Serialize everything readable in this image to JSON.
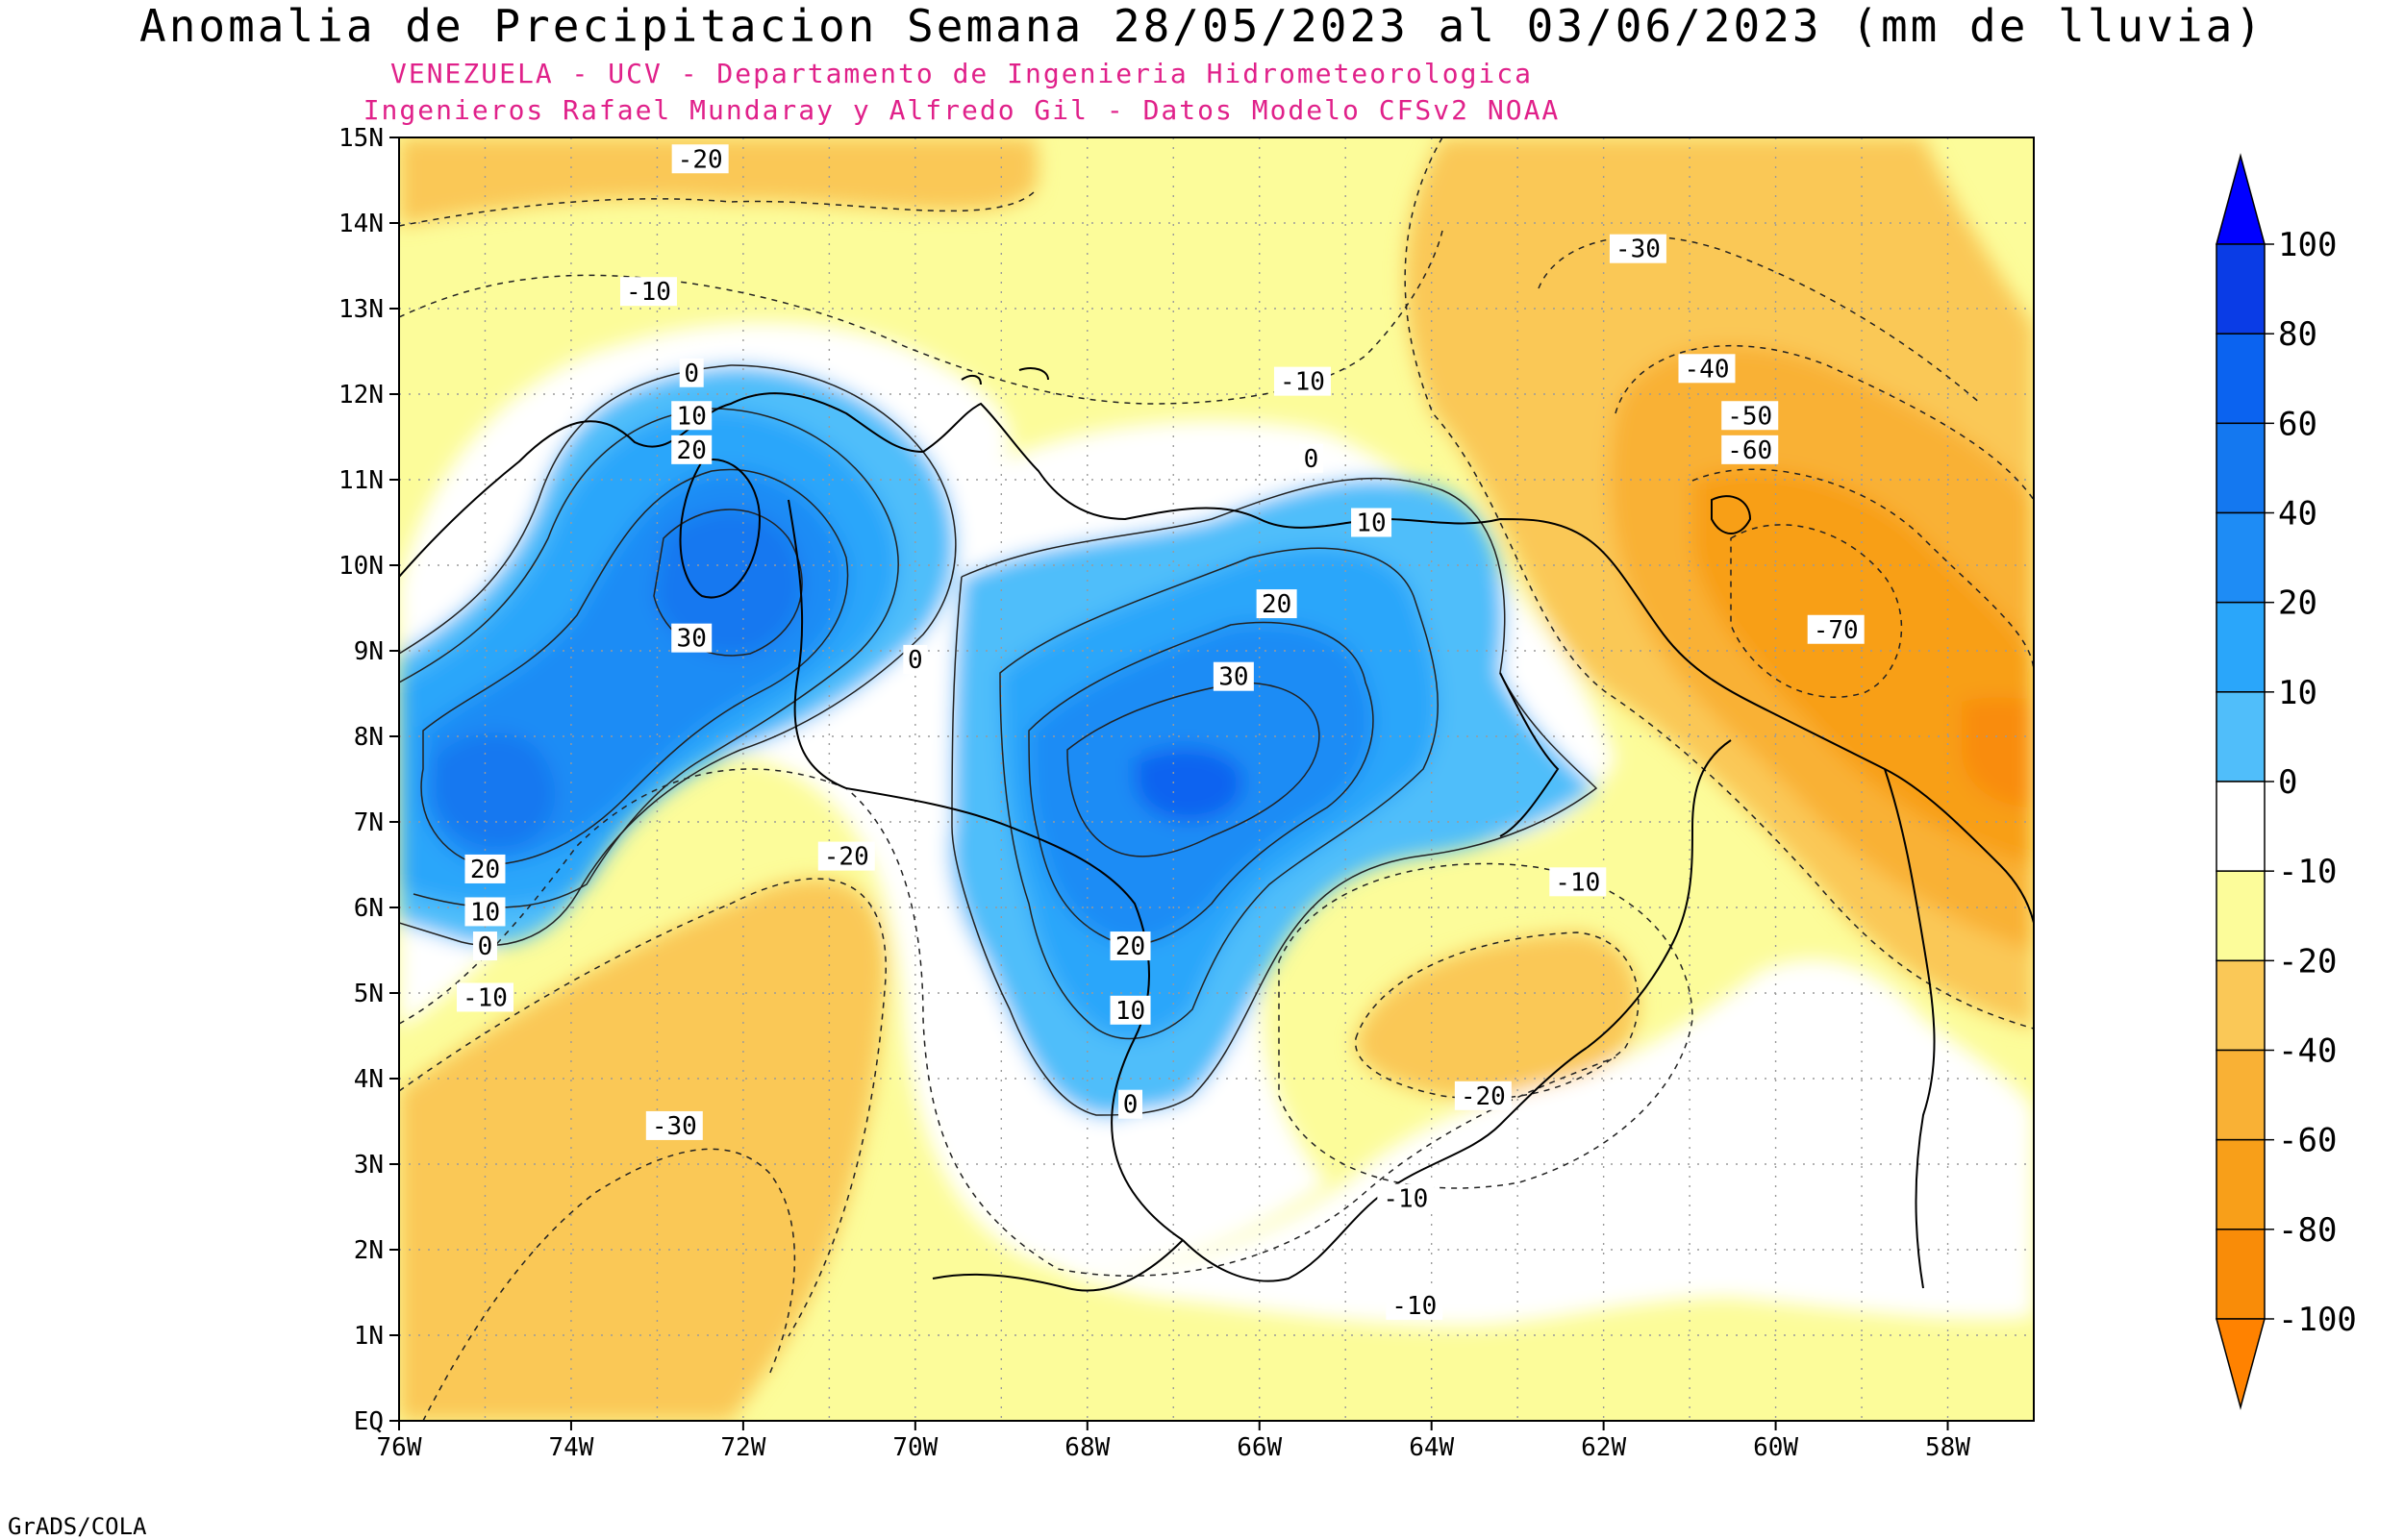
{
  "title": "Anomalia de Precipitacion Semana 28/05/2023 al 03/06/2023 (mm de lluvia)",
  "subtitle_line1": "VENEZUELA - UCV - Departamento de Ingenieria Hidrometeorologica",
  "subtitle_line2": "Ingenieros Rafael Mundaray y Alfredo Gil - Datos Modelo CFSv2 NOAA",
  "footer": "GrADS/COLA",
  "axes": {
    "lon_range": [
      -76,
      -57
    ],
    "lat_range": [
      0,
      15
    ],
    "x_ticks": [
      "76W",
      "74W",
      "72W",
      "70W",
      "68W",
      "66W",
      "64W",
      "62W",
      "60W",
      "58W"
    ],
    "y_ticks": [
      "EQ",
      "1N",
      "2N",
      "3N",
      "4N",
      "5N",
      "6N",
      "7N",
      "8N",
      "9N",
      "10N",
      "11N",
      "12N",
      "13N",
      "14N",
      "15N"
    ],
    "grid": true
  },
  "colorbar": {
    "labels": [
      "100",
      "80",
      "60",
      "40",
      "20",
      "10",
      "0",
      "-10",
      "-20",
      "-40",
      "-60",
      "-80",
      "-100"
    ],
    "colors": [
      "#0a3ce6",
      "#0b63f0",
      "#1478f0",
      "#1e8cf5",
      "#2aa6fa",
      "#50befa",
      "#ffffff",
      "#fcfc9a",
      "#fac857",
      "#f9b135",
      "#f89f19",
      "#f98c08"
    ]
  },
  "contour_labels": [
    {
      "text": "-20",
      "lon": -72.5,
      "lat": 14.75
    },
    {
      "text": "-10",
      "lon": -73.1,
      "lat": 13.2
    },
    {
      "text": "0",
      "lon": -72.6,
      "lat": 12.25
    },
    {
      "text": "10",
      "lon": -72.6,
      "lat": 11.75
    },
    {
      "text": "20",
      "lon": -72.6,
      "lat": 11.35
    },
    {
      "text": "30",
      "lon": -72.6,
      "lat": 9.15
    },
    {
      "text": "20",
      "lon": -75.0,
      "lat": 6.45
    },
    {
      "text": "10",
      "lon": -75.0,
      "lat": 5.95
    },
    {
      "text": "0",
      "lon": -75.0,
      "lat": 5.55
    },
    {
      "text": "-10",
      "lon": -75.0,
      "lat": 4.95
    },
    {
      "text": "-20",
      "lon": -70.8,
      "lat": 6.6
    },
    {
      "text": "-30",
      "lon": -72.8,
      "lat": 3.45
    },
    {
      "text": "0",
      "lon": -70.0,
      "lat": 8.9
    },
    {
      "text": "-10",
      "lon": -65.5,
      "lat": 12.15
    },
    {
      "text": "0",
      "lon": -65.4,
      "lat": 11.25
    },
    {
      "text": "10",
      "lon": -64.7,
      "lat": 10.5
    },
    {
      "text": "20",
      "lon": -65.8,
      "lat": 9.55
    },
    {
      "text": "30",
      "lon": -66.3,
      "lat": 8.7
    },
    {
      "text": "20",
      "lon": -67.5,
      "lat": 5.55
    },
    {
      "text": "10",
      "lon": -67.5,
      "lat": 4.8
    },
    {
      "text": "0",
      "lon": -67.5,
      "lat": 3.7
    },
    {
      "text": "-10",
      "lon": -62.3,
      "lat": 6.3
    },
    {
      "text": "-20",
      "lon": -63.4,
      "lat": 3.8
    },
    {
      "text": "-10",
      "lon": -64.3,
      "lat": 2.6
    },
    {
      "text": "-10",
      "lon": -64.2,
      "lat": 1.35
    },
    {
      "text": "-30",
      "lon": -61.6,
      "lat": 13.7
    },
    {
      "text": "-40",
      "lon": -60.8,
      "lat": 12.3
    },
    {
      "text": "-50",
      "lon": -60.3,
      "lat": 11.75
    },
    {
      "text": "-60",
      "lon": -60.3,
      "lat": 11.35
    },
    {
      "text": "-70",
      "lon": -59.3,
      "lat": 9.25
    }
  ]
}
